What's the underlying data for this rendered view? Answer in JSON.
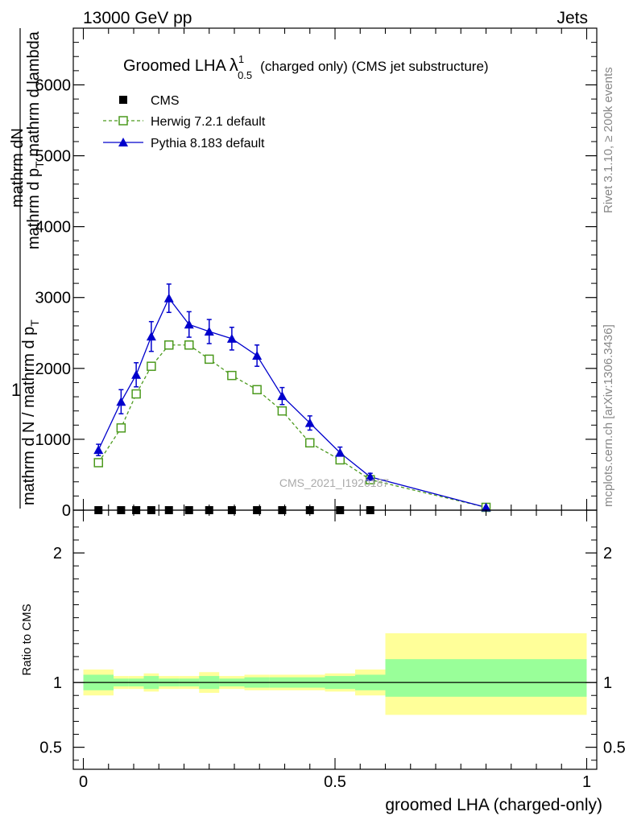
{
  "header": {
    "left_label": "13000 GeV pp",
    "right_label": "Jets"
  },
  "side_labels": {
    "rivet": "Rivet 3.1.10, ≥ 200k events",
    "mcplots": "mcplots.cern.ch [arXiv:1306.3436]"
  },
  "chart_data": [
    {
      "type": "line",
      "title_main": "Groomed LHA",
      "title_lambda": "λ",
      "title_sup": "1",
      "title_sub": "0.5",
      "title_rest": "(charged only) (CMS jet substructure)",
      "xlabel": "groomed LHA (charged-only)",
      "ylabel_numerator": "1",
      "ylabel_line1": "mathrm dN",
      "ylabel_line2": "mathrm d p",
      "ylabel_line2_sub": "T",
      "ylabel_line2_rest": "mathrm d lambda",
      "ylabel_den1": "mathrm d N / mathrm d p",
      "ylabel_den1_sub": "T",
      "watermark": "CMS_2021_I1920187",
      "xlim": [
        -0.02,
        1.02
      ],
      "ylim": [
        0,
        6800
      ],
      "yticks": [
        {
          "v": 0,
          "label": "0"
        },
        {
          "v": 1000,
          "label": "1000"
        },
        {
          "v": 2000,
          "label": "2000"
        },
        {
          "v": 3000,
          "label": "3000"
        },
        {
          "v": 4000,
          "label": "4000"
        },
        {
          "v": 5000,
          "label": "5000"
        },
        {
          "v": 6000,
          "label": "6000"
        }
      ],
      "legend": [
        {
          "name": "CMS",
          "color": "#000000",
          "marker": "square-filled"
        },
        {
          "name": "Herwig 7.2.1 default",
          "color": "#4c9a1e",
          "marker": "square-open"
        },
        {
          "name": "Pythia 8.183 default",
          "color": "#0000cc",
          "marker": "triangle"
        }
      ],
      "series": [
        {
          "name": "CMS",
          "x": [
            0.03,
            0.075,
            0.105,
            0.135,
            0.17,
            0.21,
            0.25,
            0.295,
            0.345,
            0.395,
            0.45,
            0.51,
            0.57
          ],
          "y": [
            0,
            0,
            0,
            0,
            0,
            0,
            0,
            0,
            0,
            0,
            0,
            0,
            0
          ]
        },
        {
          "name": "Herwig 7.2.1 default",
          "x": [
            0.03,
            0.075,
            0.105,
            0.135,
            0.17,
            0.21,
            0.25,
            0.295,
            0.345,
            0.395,
            0.45,
            0.51,
            0.57,
            0.8
          ],
          "y": [
            670,
            1160,
            1640,
            2030,
            2330,
            2330,
            2130,
            1900,
            1700,
            1400,
            950,
            710,
            430,
            40
          ]
        },
        {
          "name": "Pythia 8.183 default",
          "x": [
            0.03,
            0.075,
            0.105,
            0.135,
            0.17,
            0.21,
            0.25,
            0.295,
            0.345,
            0.395,
            0.45,
            0.51,
            0.57,
            0.8
          ],
          "y": [
            850,
            1530,
            1910,
            2450,
            2990,
            2620,
            2520,
            2420,
            2180,
            1610,
            1230,
            810,
            470,
            40
          ],
          "yerr": [
            80,
            170,
            170,
            210,
            200,
            180,
            170,
            160,
            150,
            120,
            100,
            80,
            50,
            10
          ]
        }
      ]
    },
    {
      "type": "area",
      "ylabel": "Ratio to CMS",
      "xlim": [
        -0.02,
        1.02
      ],
      "ylim": [
        0.33,
        2.33
      ],
      "yticks": [
        {
          "v": 0.5,
          "label": "0.5"
        },
        {
          "v": 1,
          "label": "1"
        },
        {
          "v": 2,
          "label": "2"
        }
      ],
      "xticks": [
        {
          "v": 0,
          "label": "0"
        },
        {
          "v": 0.5,
          "label": "0.5"
        },
        {
          "v": 1,
          "label": "1"
        }
      ],
      "bins": [
        0,
        0.06,
        0.09,
        0.12,
        0.15,
        0.19,
        0.23,
        0.27,
        0.32,
        0.37,
        0.42,
        0.48,
        0.54,
        0.6,
        1.0
      ],
      "inner_band": [
        [
          0.94,
          1.06
        ],
        [
          0.97,
          1.03
        ],
        [
          0.97,
          1.03
        ],
        [
          0.95,
          1.05
        ],
        [
          0.97,
          1.03
        ],
        [
          0.97,
          1.03
        ],
        [
          0.95,
          1.05
        ],
        [
          0.97,
          1.03
        ],
        [
          0.96,
          1.04
        ],
        [
          0.96,
          1.04
        ],
        [
          0.96,
          1.04
        ],
        [
          0.95,
          1.05
        ],
        [
          0.94,
          1.06
        ],
        [
          0.89,
          1.18
        ]
      ],
      "outer_band": [
        [
          0.9,
          1.1
        ],
        [
          0.95,
          1.05
        ],
        [
          0.95,
          1.05
        ],
        [
          0.93,
          1.07
        ],
        [
          0.95,
          1.05
        ],
        [
          0.95,
          1.05
        ],
        [
          0.92,
          1.08
        ],
        [
          0.95,
          1.05
        ],
        [
          0.94,
          1.06
        ],
        [
          0.94,
          1.06
        ],
        [
          0.94,
          1.06
        ],
        [
          0.93,
          1.07
        ],
        [
          0.9,
          1.1
        ],
        [
          0.75,
          1.38
        ]
      ],
      "colors": {
        "inner": "#99ff99",
        "outer": "#ffff99"
      }
    }
  ]
}
